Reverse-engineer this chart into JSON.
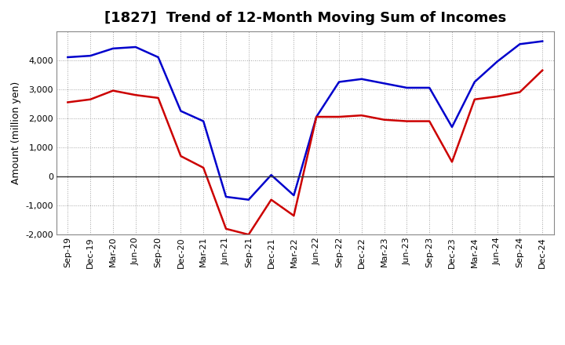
{
  "title": "[1827]  Trend of 12-Month Moving Sum of Incomes",
  "ylabel": "Amount (million yen)",
  "x_labels": [
    "Sep-19",
    "Dec-19",
    "Mar-20",
    "Jun-20",
    "Sep-20",
    "Dec-20",
    "Mar-21",
    "Jun-21",
    "Sep-21",
    "Dec-21",
    "Mar-22",
    "Jun-22",
    "Sep-22",
    "Dec-22",
    "Mar-23",
    "Jun-23",
    "Sep-23",
    "Dec-23",
    "Mar-24",
    "Jun-24",
    "Sep-24",
    "Dec-24"
  ],
  "ordinary_income": [
    4100,
    4150,
    4400,
    4450,
    4100,
    2250,
    1900,
    -700,
    -800,
    50,
    -650,
    2050,
    3250,
    3350,
    3200,
    3050,
    3050,
    1700,
    3250,
    3950,
    4550,
    4650
  ],
  "net_income": [
    2550,
    2650,
    2950,
    2800,
    2700,
    700,
    300,
    -1800,
    -2000,
    -800,
    -1350,
    2050,
    2050,
    2100,
    1950,
    1900,
    1900,
    500,
    2650,
    2750,
    2900,
    3650
  ],
  "ordinary_color": "#0000cc",
  "net_color": "#cc0000",
  "ylim": [
    -2000,
    5000
  ],
  "yticks": [
    -2000,
    -1000,
    0,
    1000,
    2000,
    3000,
    4000
  ],
  "background_color": "#ffffff",
  "plot_bg_color": "#ffffff",
  "grid_color": "#888888",
  "zero_line_color": "#333333",
  "title_fontsize": 13,
  "label_fontsize": 9,
  "tick_fontsize": 8,
  "legend_fontsize": 9,
  "line_width": 1.8
}
